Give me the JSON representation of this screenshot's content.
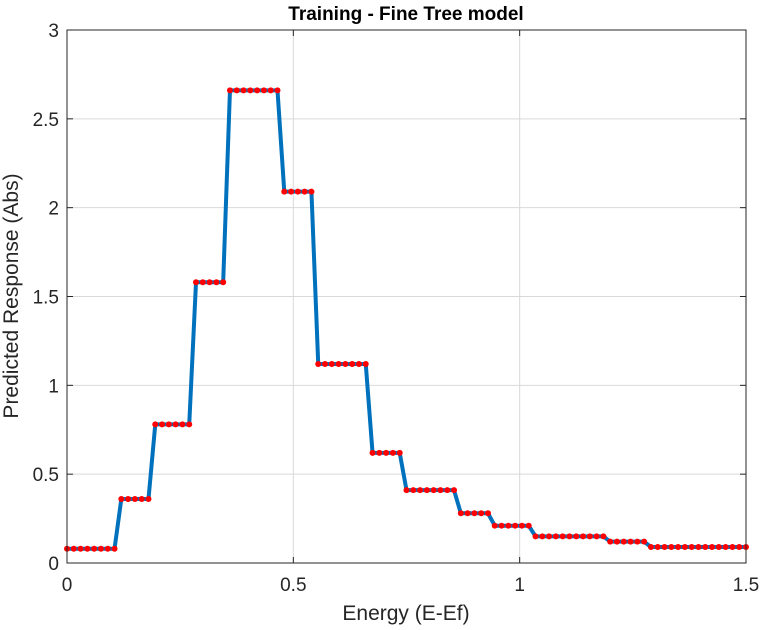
{
  "chart_data": {
    "type": "line",
    "title": "Training - Fine Tree model",
    "xlabel": "Energy (E-Ef)",
    "ylabel": "Predicted Response (Abs)",
    "xlim": [
      0,
      1.5
    ],
    "ylim": [
      0,
      3
    ],
    "xticks": [
      0,
      0.5,
      1,
      1.5
    ],
    "xtick_labels": [
      "0",
      "0.5",
      "1",
      "1.5"
    ],
    "yticks": [
      0,
      0.5,
      1,
      1.5,
      2,
      2.5,
      3
    ],
    "ytick_labels": [
      "0",
      "0.5",
      "1",
      "1.5",
      "2",
      "2.5",
      "3"
    ],
    "grid": true,
    "line_color": "#0072BD",
    "marker_color": "#FF0000",
    "x": [
      0.0,
      0.015,
      0.03,
      0.045,
      0.06,
      0.075,
      0.09,
      0.105,
      0.12,
      0.135,
      0.15,
      0.165,
      0.18,
      0.195,
      0.21,
      0.225,
      0.24,
      0.255,
      0.27,
      0.285,
      0.3,
      0.315,
      0.33,
      0.345,
      0.36,
      0.375,
      0.39,
      0.405,
      0.42,
      0.435,
      0.45,
      0.465,
      0.48,
      0.495,
      0.51,
      0.525,
      0.54,
      0.555,
      0.57,
      0.585,
      0.6,
      0.615,
      0.63,
      0.645,
      0.66,
      0.675,
      0.69,
      0.705,
      0.72,
      0.735,
      0.75,
      0.765,
      0.78,
      0.795,
      0.81,
      0.825,
      0.84,
      0.855,
      0.87,
      0.885,
      0.9,
      0.915,
      0.93,
      0.945,
      0.96,
      0.975,
      0.99,
      1.005,
      1.02,
      1.035,
      1.05,
      1.065,
      1.08,
      1.095,
      1.11,
      1.125,
      1.14,
      1.155,
      1.17,
      1.185,
      1.2,
      1.215,
      1.23,
      1.245,
      1.26,
      1.275,
      1.29,
      1.305,
      1.32,
      1.335,
      1.35,
      1.365,
      1.38,
      1.395,
      1.41,
      1.425,
      1.44,
      1.455,
      1.47,
      1.485,
      1.5
    ],
    "y": [
      0.08,
      0.08,
      0.08,
      0.08,
      0.08,
      0.08,
      0.08,
      0.08,
      0.36,
      0.36,
      0.36,
      0.36,
      0.36,
      0.78,
      0.78,
      0.78,
      0.78,
      0.78,
      0.78,
      1.58,
      1.58,
      1.58,
      1.58,
      1.58,
      2.66,
      2.66,
      2.66,
      2.66,
      2.66,
      2.66,
      2.66,
      2.66,
      2.09,
      2.09,
      2.09,
      2.09,
      2.09,
      1.12,
      1.12,
      1.12,
      1.12,
      1.12,
      1.12,
      1.12,
      1.12,
      0.62,
      0.62,
      0.62,
      0.62,
      0.62,
      0.41,
      0.41,
      0.41,
      0.41,
      0.41,
      0.41,
      0.41,
      0.41,
      0.28,
      0.28,
      0.28,
      0.28,
      0.28,
      0.21,
      0.21,
      0.21,
      0.21,
      0.21,
      0.21,
      0.15,
      0.15,
      0.15,
      0.15,
      0.15,
      0.15,
      0.15,
      0.15,
      0.15,
      0.15,
      0.15,
      0.12,
      0.12,
      0.12,
      0.12,
      0.12,
      0.12,
      0.09,
      0.09,
      0.09,
      0.09,
      0.09,
      0.09,
      0.09,
      0.09,
      0.09,
      0.09,
      0.09,
      0.09,
      0.09,
      0.09,
      0.09
    ]
  }
}
